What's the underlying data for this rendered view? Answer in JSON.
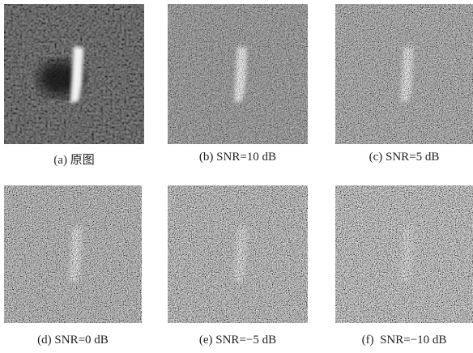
{
  "panels": [
    {
      "caption": "(a) 原图"
    },
    {
      "caption": "(b) SNR=10 dB"
    },
    {
      "caption": "(c) SNR=5 dB"
    },
    {
      "caption": "(d) SNR=0 dB"
    },
    {
      "caption": "(e) SNR=−5 dB"
    },
    {
      "caption": "(f)  SNR=−10 dB"
    }
  ]
}
